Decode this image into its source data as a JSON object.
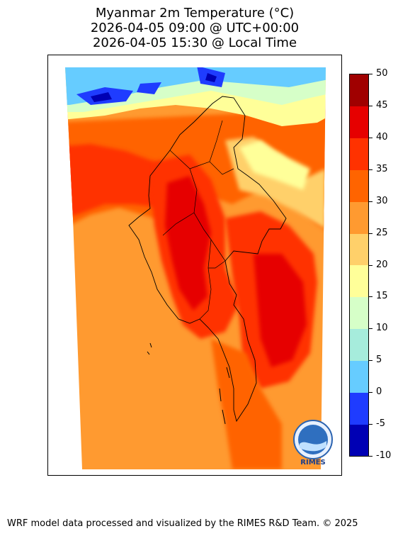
{
  "title": {
    "line1": "Myanmar 2m Temperature (°C)",
    "line2": "2026-04-05 09:00 @ UTC+00:00",
    "line3": "2026-04-05 15:30 @ Local Time"
  },
  "colorbar": {
    "min": -10,
    "max": 50,
    "step": 5,
    "labels": [
      "50",
      "45",
      "40",
      "35",
      "30",
      "25",
      "20",
      "15",
      "10",
      "5",
      "0",
      "-5",
      "-10"
    ],
    "colors": [
      "#0000b4",
      "#1f3cff",
      "#66ccff",
      "#a6ecdc",
      "#d6ffc8",
      "#ffff99",
      "#ffd06a",
      "#ff9a30",
      "#ff6400",
      "#ff3200",
      "#e60000",
      "#a00000"
    ]
  },
  "logo": {
    "text": "RIMES"
  },
  "footer": "WRF model data processed and visualized by the RIMES R&D Team. © 2025"
}
